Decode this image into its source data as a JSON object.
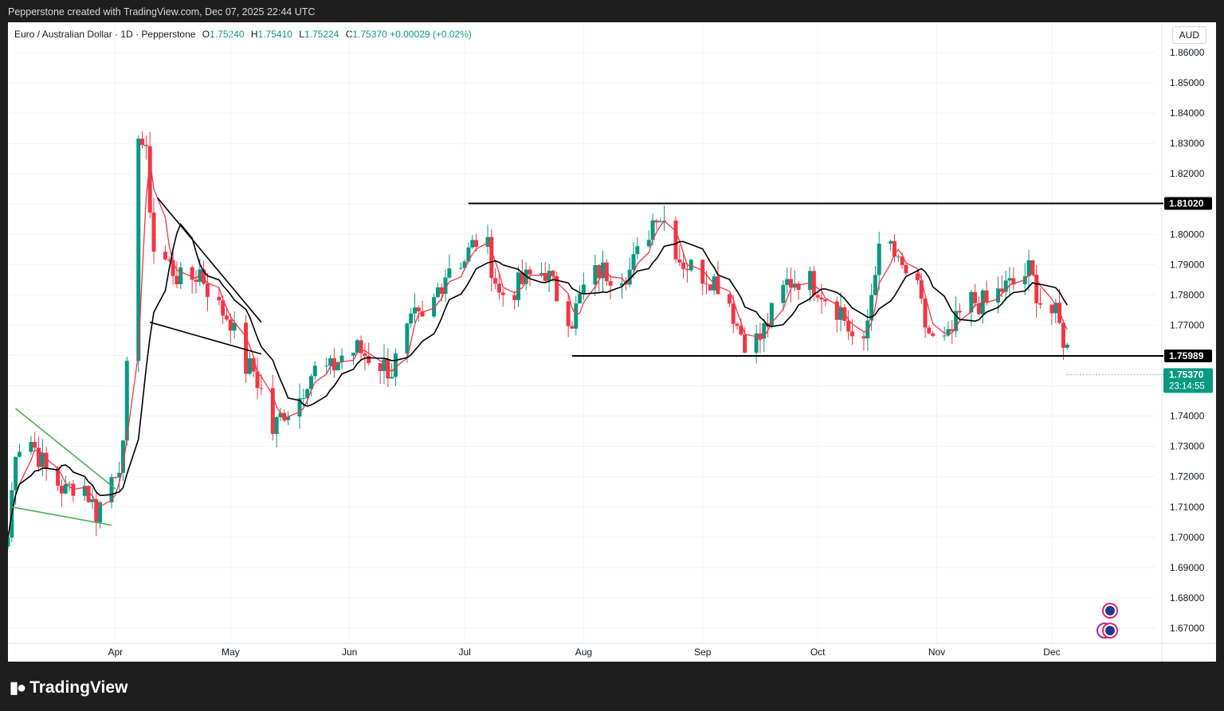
{
  "header": {
    "credit": "Pepperstone created with TradingView.com, Dec 07, 2025 22:44 UTC"
  },
  "legend": {
    "symbol": "Euro / Australian Dollar · 1D · Pepperstone",
    "o_label": "O",
    "o": "1.75240",
    "h_label": "H",
    "h": "1.75410",
    "l_label": "L",
    "l": "1.75224",
    "c_label": "C",
    "c": "1.75370",
    "change": "+0.00029 (+0.02%)"
  },
  "currency_button": "AUD",
  "footer": {
    "brand": "TradingView"
  },
  "colors": {
    "up": "#089981",
    "down": "#f23645",
    "ma_fast": "#f23645",
    "ma_slow": "#000000",
    "pattern": "#4caf50"
  },
  "chart_data": {
    "type": "candlestick",
    "title": "Euro / Australian Dollar · 1D · Pepperstone",
    "ylim": [
      1.665,
      1.87
    ],
    "y_ticks": [
      "1.86000",
      "1.85000",
      "1.84000",
      "1.83000",
      "1.82000",
      "1.81000",
      "1.80000",
      "1.79000",
      "1.78000",
      "1.77000",
      "1.76000",
      "1.75000",
      "1.74000",
      "1.73000",
      "1.72000",
      "1.71000",
      "1.70000",
      "1.69000",
      "1.68000",
      "1.67000"
    ],
    "x_ticks": [
      {
        "label": "Apr",
        "date": "2025-04-01"
      },
      {
        "label": "May",
        "date": "2025-05-01"
      },
      {
        "label": "Jun",
        "date": "2025-06-01"
      },
      {
        "label": "Jul",
        "date": "2025-07-01"
      },
      {
        "label": "Aug",
        "date": "2025-08-01"
      },
      {
        "label": "Sep",
        "date": "2025-09-01"
      },
      {
        "label": "Oct",
        "date": "2025-10-01"
      },
      {
        "label": "Nov",
        "date": "2025-11-01"
      },
      {
        "label": "Dec",
        "date": "2025-12-01"
      }
    ],
    "x_range": [
      "2025-03-04",
      "2025-12-28"
    ],
    "levels": [
      {
        "label": "1.81020",
        "value": 1.8102,
        "from": "2025-07-02",
        "to": "2025-12-28"
      },
      {
        "label": "1.75989",
        "value": 1.75989,
        "from": "2025-07-29",
        "to": "2025-12-28"
      }
    ],
    "last_price": {
      "label": "1.75370",
      "value": 1.7537,
      "countdown": "23:14:55"
    },
    "price_path": [
      [
        "2025-03-04",
        1.7
      ],
      [
        "2025-03-06",
        1.73
      ],
      [
        "2025-03-10",
        1.732
      ],
      [
        "2025-03-14",
        1.722
      ],
      [
        "2025-03-19",
        1.715
      ],
      [
        "2025-03-23",
        1.72
      ],
      [
        "2025-03-27",
        1.708
      ],
      [
        "2025-03-31",
        1.72
      ],
      [
        "2025-04-03",
        1.728
      ],
      [
        "2025-04-05",
        1.78
      ],
      [
        "2025-04-07",
        1.835
      ],
      [
        "2025-04-09",
        1.825
      ],
      [
        "2025-04-11",
        1.795
      ],
      [
        "2025-04-15",
        1.79
      ],
      [
        "2025-04-19",
        1.783
      ],
      [
        "2025-04-23",
        1.788
      ],
      [
        "2025-04-27",
        1.777
      ],
      [
        "2025-05-01",
        1.772
      ],
      [
        "2025-05-04",
        1.757
      ],
      [
        "2025-05-07",
        1.755
      ],
      [
        "2025-05-10",
        1.745
      ],
      [
        "2025-05-12",
        1.735
      ],
      [
        "2025-05-15",
        1.742
      ],
      [
        "2025-05-18",
        1.743
      ],
      [
        "2025-05-21",
        1.753
      ],
      [
        "2025-05-24",
        1.756
      ],
      [
        "2025-05-27",
        1.755
      ],
      [
        "2025-05-30",
        1.76
      ],
      [
        "2025-06-03",
        1.762
      ],
      [
        "2025-06-08",
        1.758
      ],
      [
        "2025-06-12",
        1.755
      ],
      [
        "2025-06-15",
        1.765
      ],
      [
        "2025-06-18",
        1.772
      ],
      [
        "2025-06-21",
        1.77
      ],
      [
        "2025-06-24",
        1.782
      ],
      [
        "2025-06-27",
        1.79
      ],
      [
        "2025-07-01",
        1.792
      ],
      [
        "2025-07-04",
        1.798
      ],
      [
        "2025-07-07",
        1.795
      ],
      [
        "2025-07-10",
        1.78
      ],
      [
        "2025-07-14",
        1.782
      ],
      [
        "2025-07-18",
        1.786
      ],
      [
        "2025-07-22",
        1.788
      ],
      [
        "2025-07-25",
        1.78
      ],
      [
        "2025-07-29",
        1.772
      ],
      [
        "2025-08-01",
        1.782
      ],
      [
        "2025-08-05",
        1.788
      ],
      [
        "2025-08-09",
        1.787
      ],
      [
        "2025-08-13",
        1.788
      ],
      [
        "2025-08-17",
        1.798
      ],
      [
        "2025-08-20",
        1.808
      ],
      [
        "2025-08-23",
        1.803
      ],
      [
        "2025-08-26",
        1.792
      ],
      [
        "2025-08-30",
        1.788
      ],
      [
        "2025-09-03",
        1.786
      ],
      [
        "2025-09-07",
        1.782
      ],
      [
        "2025-09-10",
        1.77
      ],
      [
        "2025-09-13",
        1.763
      ],
      [
        "2025-09-16",
        1.766
      ],
      [
        "2025-09-20",
        1.776
      ],
      [
        "2025-09-23",
        1.784
      ],
      [
        "2025-09-27",
        1.786
      ],
      [
        "2025-10-01",
        1.783
      ],
      [
        "2025-10-04",
        1.778
      ],
      [
        "2025-10-07",
        1.775
      ],
      [
        "2025-10-10",
        1.766
      ],
      [
        "2025-10-13",
        1.762
      ],
      [
        "2025-10-16",
        1.79
      ],
      [
        "2025-10-19",
        1.8
      ],
      [
        "2025-10-22",
        1.789
      ],
      [
        "2025-10-26",
        1.786
      ],
      [
        "2025-10-29",
        1.77
      ],
      [
        "2025-11-01",
        1.762
      ],
      [
        "2025-11-04",
        1.765
      ],
      [
        "2025-11-07",
        1.773
      ],
      [
        "2025-11-10",
        1.778
      ],
      [
        "2025-11-14",
        1.777
      ],
      [
        "2025-11-18",
        1.782
      ],
      [
        "2025-11-22",
        1.784
      ],
      [
        "2025-11-25",
        1.788
      ],
      [
        "2025-11-28",
        1.778
      ],
      [
        "2025-12-02",
        1.773
      ],
      [
        "2025-12-05",
        1.762
      ],
      [
        "2025-12-07",
        1.7537
      ]
    ],
    "annotations": [
      {
        "type": "trendline",
        "color": "#4caf50",
        "from": [
          "2025-03-06",
          1.7425
        ],
        "to": [
          "2025-04-01",
          1.716
        ]
      },
      {
        "type": "trendline",
        "color": "#4caf50",
        "from": [
          "2025-03-05",
          1.71
        ],
        "to": [
          "2025-03-31",
          1.704
        ]
      },
      {
        "type": "trendline",
        "color": "#000000",
        "from": [
          "2025-04-12",
          1.812
        ],
        "to": [
          "2025-05-09",
          1.771
        ]
      },
      {
        "type": "trendline",
        "color": "#000000",
        "from": [
          "2025-04-10",
          1.771
        ],
        "to": [
          "2025-05-09",
          1.7605
        ]
      }
    ]
  }
}
